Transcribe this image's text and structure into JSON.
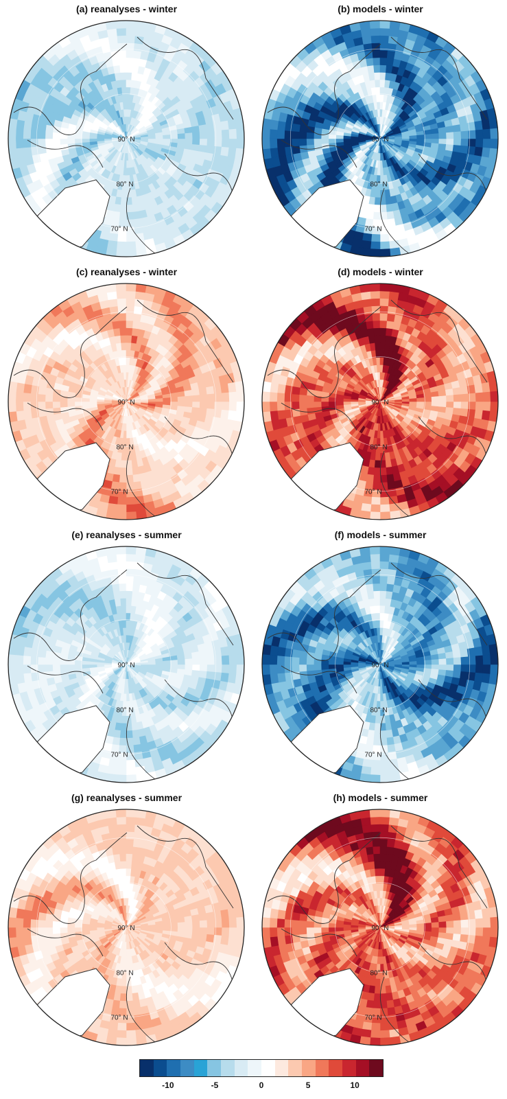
{
  "panels": [
    {
      "title": "(a) reanalyses - winter",
      "scheme": "blue",
      "intensity": 0.45
    },
    {
      "title": "(b) models - winter",
      "scheme": "blue",
      "intensity": 0.9
    },
    {
      "title": "(c) reanalyses - winter",
      "scheme": "red",
      "intensity": 0.5
    },
    {
      "title": "(d) models - winter",
      "scheme": "red",
      "intensity": 0.95
    },
    {
      "title": "(e) reanalyses - summer",
      "scheme": "blue",
      "intensity": 0.4
    },
    {
      "title": "(f) models - summer",
      "scheme": "blue",
      "intensity": 0.85
    },
    {
      "title": "(g) reanalyses - summer",
      "scheme": "red",
      "intensity": 0.45
    },
    {
      "title": "(h) models - summer",
      "scheme": "red",
      "intensity": 0.9
    }
  ],
  "latitude_labels": [
    "90° N",
    "80° N",
    "70° N"
  ],
  "colorbar": {
    "colors": [
      "#08306b",
      "#0b4d8f",
      "#1f6fb0",
      "#3d8cc4",
      "#29a3d6",
      "#86c5e2",
      "#b7dcec",
      "#d8ebf4",
      "#eef6fa",
      "#ffffff",
      "#fde9df",
      "#fcc9b0",
      "#f9a684",
      "#f0785a",
      "#e04a3a",
      "#c9262f",
      "#a50f25",
      "#6e0a1e"
    ],
    "ticks": [
      {
        "label": "-10",
        "value": -10
      },
      {
        "label": "-5",
        "value": -5
      },
      {
        "label": "0",
        "value": 0
      },
      {
        "label": "5",
        "value": 5
      },
      {
        "label": "10",
        "value": 10
      }
    ],
    "range": [
      -13,
      13
    ]
  }
}
